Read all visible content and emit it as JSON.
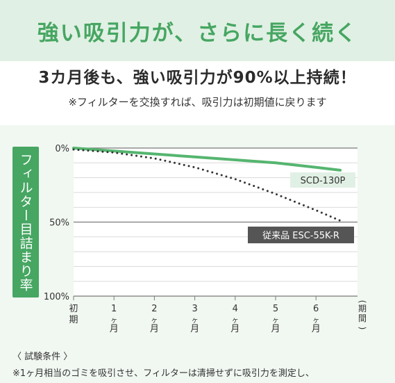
{
  "banner": {
    "title": "強い吸引力が、さらに長く続く"
  },
  "headline": "3カ月後も、強い吸引力が90%以上持続！",
  "subnote": "※フィルターを交換すれば、吸引力は初期値に戻ります",
  "colors": {
    "accent": "#46a662",
    "banner_bg": "#e1f0e4",
    "panel_bg": "#f1f7f1",
    "dark_label": "#555555"
  },
  "chart_data": {
    "type": "line",
    "ylabel": "フィルター目詰まり率",
    "xlabel": "(期間)",
    "x_ticks": [
      {
        "value": 0,
        "label": "初期"
      },
      {
        "value": 1,
        "label": "1ヶ月"
      },
      {
        "value": 2,
        "label": "2ヶ月"
      },
      {
        "value": 3,
        "label": "3ヶ月"
      },
      {
        "value": 4,
        "label": "4ヶ月"
      },
      {
        "value": 5,
        "label": "5ヶ月"
      },
      {
        "value": 6,
        "label": "6ヶ月"
      }
    ],
    "y_ticks": [
      "0%",
      "50%",
      "100%"
    ],
    "ylim": [
      0,
      100
    ],
    "y_inverted": true,
    "grid": true,
    "series": [
      {
        "name": "SCD-130P",
        "style": "solid",
        "color": "#55b56f",
        "points": [
          [
            0,
            0
          ],
          [
            1,
            2
          ],
          [
            2,
            4
          ],
          [
            3,
            6
          ],
          [
            4,
            8
          ],
          [
            5,
            10
          ],
          [
            6,
            13
          ],
          [
            6.6,
            15
          ]
        ]
      },
      {
        "name": "従来品 ESC-55K-R",
        "style": "dotted",
        "color": "#333333",
        "points": [
          [
            0,
            1
          ],
          [
            1,
            3
          ],
          [
            2,
            7
          ],
          [
            3,
            13
          ],
          [
            4,
            21
          ],
          [
            5,
            31
          ],
          [
            6,
            42
          ],
          [
            6.6,
            49
          ]
        ]
      }
    ]
  },
  "conditions": {
    "title": "〈 試験条件 〉",
    "text": "※1ヶ月相当のゴミを吸引させ、フィルターは清掃せずに吸引力を測定し、"
  }
}
